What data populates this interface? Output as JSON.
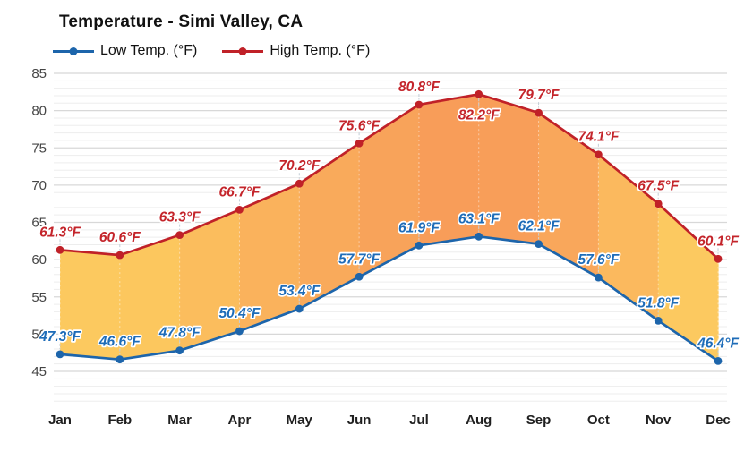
{
  "title": "Temperature - Simi Valley, CA",
  "legend": [
    {
      "label": "Low Temp. (°F)",
      "color": "#1d65ab"
    },
    {
      "label": "High Temp. (°F)",
      "color": "#c02128"
    }
  ],
  "chart_data": {
    "type": "line",
    "title": "Temperature - Simi Valley, CA",
    "categories": [
      "Jan",
      "Feb",
      "Mar",
      "Apr",
      "May",
      "Jun",
      "Jul",
      "Aug",
      "Sep",
      "Oct",
      "Nov",
      "Dec"
    ],
    "series": [
      {
        "name": "Low Temp. (°F)",
        "color": "#1d65ab",
        "label_color": "#1e6cb8",
        "values": [
          47.3,
          46.6,
          47.8,
          50.4,
          53.4,
          57.7,
          61.9,
          63.1,
          62.1,
          57.6,
          51.8,
          46.4
        ],
        "labels_below": []
      },
      {
        "name": "High Temp. (°F)",
        "color": "#c02128",
        "label_color": "#c4252b",
        "values": [
          61.3,
          60.6,
          63.3,
          66.7,
          70.2,
          75.6,
          80.8,
          82.2,
          79.7,
          74.1,
          67.5,
          60.1
        ],
        "labels_below": [
          7
        ]
      }
    ],
    "label_unit": "°F",
    "ylim": [
      41,
      85
    ],
    "yticks": [
      45,
      50,
      55,
      60,
      65,
      70,
      75,
      80,
      85
    ],
    "grid": true,
    "legend_position": "top",
    "fill_between": true,
    "fill_band_colors": [
      "#fcc95f",
      "#fcc75e",
      "#fbbd5d",
      "#fab25c",
      "#f9aa5b",
      "#f8a35a",
      "#f89d59",
      "#f89e59",
      "#f9a75b",
      "#fbb95e",
      "#fcc960"
    ],
    "gridline_major_color": "#d8d8d8",
    "gridline_minor_color": "#ededed"
  }
}
